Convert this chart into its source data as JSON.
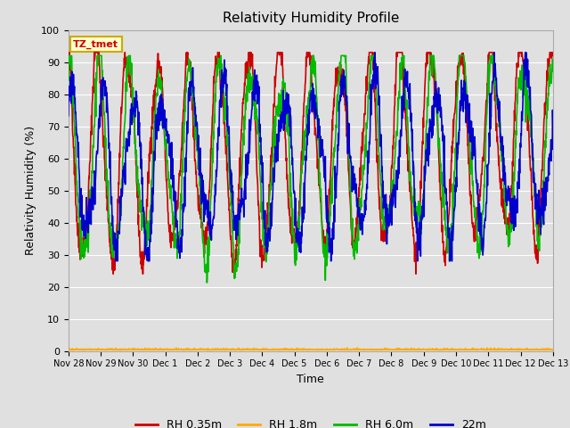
{
  "title": "Relativity Humidity Profile",
  "xlabel": "Time",
  "ylabel": "Relativity Humidity (%)",
  "ylim": [
    0,
    100
  ],
  "yticks": [
    0,
    10,
    20,
    30,
    40,
    50,
    60,
    70,
    80,
    90,
    100
  ],
  "xtick_labels": [
    "Nov 28",
    "Nov 29",
    "Nov 30",
    "Dec 1",
    "Dec 2",
    "Dec 3",
    "Dec 4",
    "Dec 5",
    "Dec 6",
    "Dec 7",
    "Dec 8",
    "Dec 9",
    "Dec 10",
    "Dec 11",
    "Dec 12",
    "Dec 13"
  ],
  "colors": {
    "RH 0.35m": "#cc0000",
    "RH 1.8m": "#ffaa00",
    "RH 6.0m": "#00bb00",
    "22m": "#0000cc"
  },
  "legend_labels": [
    "RH 0.35m",
    "RH 1.8m",
    "RH 6.0m",
    "22m"
  ],
  "annotation_box": "TZ_tmet",
  "annotation_box_color": "#ffffcc",
  "annotation_box_edge": "#ccaa00",
  "annotation_text_color": "#cc0000",
  "bg_color": "#e0e0e0",
  "plot_bg_color": "#e0e0e0",
  "grid_color": "#ffffff",
  "line_width": 1.2
}
